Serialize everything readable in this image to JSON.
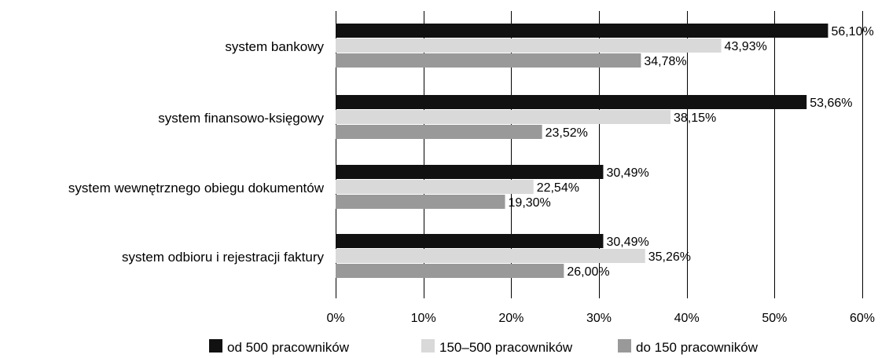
{
  "chart_data": {
    "type": "bar",
    "orientation": "horizontal",
    "categories": [
      "system bankowy",
      "system finansowo-księgowy",
      "system wewnętrznego obiegu dokumentów",
      "system odbioru i rejestracji faktury"
    ],
    "series": [
      {
        "name": "od 500 pracowników",
        "color": "#111111",
        "values": [
          56.1,
          53.66,
          30.49,
          30.49
        ],
        "labels": [
          "56,10%",
          "53,66%",
          "30,49%",
          "30,49%"
        ]
      },
      {
        "name": "150–500 pracowników",
        "color": "#d9d9d9",
        "values": [
          43.93,
          38.15,
          22.54,
          35.26
        ],
        "labels": [
          "43,93%",
          "38,15%",
          "22,54%",
          "35,26%"
        ]
      },
      {
        "name": "do 150 pracowników",
        "color": "#999999",
        "values": [
          34.78,
          23.52,
          19.3,
          26.0
        ],
        "labels": [
          "34,78%",
          "23,52%",
          "19,30%",
          "26,00%"
        ]
      }
    ],
    "xlim": [
      0,
      60
    ],
    "xticks": [
      0,
      10,
      20,
      30,
      40,
      50,
      60
    ],
    "xtick_labels": [
      "0%",
      "10%",
      "20%",
      "30%",
      "40%",
      "50%",
      "60%"
    ],
    "grid": "vertical",
    "legend_position": "bottom",
    "title": "",
    "xlabel": "",
    "ylabel": ""
  }
}
